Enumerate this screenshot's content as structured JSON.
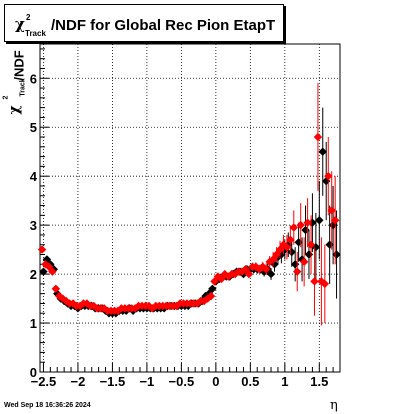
{
  "title": {
    "symbol": "χ",
    "sup": "2",
    "sub": "Track",
    "text": "/NDF for Global Rec Pion EtapT"
  },
  "timestamp": "Wed Sep 18 16:36:26 2024",
  "ylabel_parts": {
    "symbol": "χ",
    "sup": "2",
    "sub": "Track",
    "tail": "/NDF"
  },
  "chart_data": {
    "type": "scatter",
    "title": "χ²_Track/NDF for Global Rec Pion EtapT",
    "xlabel": "η",
    "ylabel": "χ²_Track/NDF",
    "xlim": [
      -2.55,
      1.8
    ],
    "ylim": [
      0,
      6.7
    ],
    "xticks": [
      -2.5,
      -2,
      -1.5,
      -1,
      -0.5,
      0,
      0.5,
      1,
      1.5
    ],
    "xtick_labels": [
      "−2.5",
      "−2",
      "−1.5",
      "−1",
      "−0.5",
      "0",
      "0.5",
      "1",
      "1.5"
    ],
    "yticks": [
      0,
      1,
      2,
      3,
      4,
      5,
      6
    ],
    "ytick_labels": [
      "0",
      "1",
      "2",
      "3",
      "4",
      "5",
      "6"
    ],
    "grid": true,
    "series": [
      {
        "color": "#000000",
        "x": [
          -2.5,
          -2.45,
          -2.4,
          -2.35,
          -2.3,
          -2.25,
          -2.2,
          -2.15,
          -2.1,
          -2.05,
          -2.0,
          -1.95,
          -1.9,
          -1.85,
          -1.8,
          -1.75,
          -1.7,
          -1.65,
          -1.6,
          -1.55,
          -1.5,
          -1.45,
          -1.4,
          -1.35,
          -1.3,
          -1.25,
          -1.2,
          -1.15,
          -1.1,
          -1.05,
          -1.0,
          -0.95,
          -0.9,
          -0.85,
          -0.8,
          -0.75,
          -0.7,
          -0.65,
          -0.6,
          -0.55,
          -0.5,
          -0.45,
          -0.4,
          -0.35,
          -0.3,
          -0.25,
          -0.2,
          -0.15,
          -0.1,
          -0.05,
          0.0,
          0.05,
          0.1,
          0.15,
          0.2,
          0.25,
          0.3,
          0.35,
          0.4,
          0.45,
          0.5,
          0.55,
          0.6,
          0.65,
          0.7,
          0.75,
          0.8,
          0.85,
          0.9,
          0.95,
          1.0,
          1.05,
          1.1,
          1.15,
          1.2,
          1.25,
          1.3,
          1.35,
          1.4,
          1.45,
          1.5,
          1.55,
          1.6,
          1.65,
          1.7,
          1.75
        ],
        "y": [
          2.05,
          2.3,
          2.2,
          2.1,
          1.6,
          1.5,
          1.45,
          1.4,
          1.35,
          1.35,
          1.3,
          1.35,
          1.35,
          1.35,
          1.35,
          1.3,
          1.3,
          1.3,
          1.25,
          1.2,
          1.2,
          1.2,
          1.25,
          1.25,
          1.25,
          1.3,
          1.25,
          1.3,
          1.3,
          1.3,
          1.3,
          1.3,
          1.3,
          1.3,
          1.3,
          1.3,
          1.35,
          1.35,
          1.35,
          1.35,
          1.35,
          1.35,
          1.35,
          1.4,
          1.4,
          1.4,
          1.45,
          1.55,
          1.6,
          1.7,
          1.85,
          1.9,
          1.95,
          1.95,
          1.95,
          2.0,
          2.05,
          2.05,
          2.0,
          2.1,
          2.1,
          2.1,
          2.1,
          2.1,
          2.05,
          2.1,
          2.0,
          2.2,
          2.35,
          2.4,
          2.5,
          2.6,
          2.45,
          2.2,
          2.65,
          2.3,
          2.9,
          2.4,
          3.05,
          2.55,
          3.1,
          4.5,
          3.9,
          2.6,
          3.0,
          2.4
        ],
        "yerr": [
          0.05,
          0.05,
          0.05,
          0.05,
          0.04,
          0.04,
          0.04,
          0.03,
          0.03,
          0.03,
          0.03,
          0.03,
          0.03,
          0.03,
          0.03,
          0.03,
          0.03,
          0.03,
          0.03,
          0.03,
          0.03,
          0.03,
          0.03,
          0.03,
          0.03,
          0.03,
          0.03,
          0.03,
          0.03,
          0.03,
          0.03,
          0.03,
          0.03,
          0.03,
          0.03,
          0.03,
          0.03,
          0.03,
          0.03,
          0.03,
          0.03,
          0.03,
          0.03,
          0.03,
          0.03,
          0.03,
          0.03,
          0.03,
          0.04,
          0.04,
          0.05,
          0.05,
          0.05,
          0.05,
          0.05,
          0.06,
          0.06,
          0.06,
          0.07,
          0.07,
          0.08,
          0.08,
          0.09,
          0.09,
          0.1,
          0.12,
          0.12,
          0.15,
          0.15,
          0.18,
          0.2,
          0.25,
          0.3,
          0.35,
          0.4,
          0.45,
          0.5,
          0.5,
          0.6,
          0.7,
          0.8,
          0.9,
          0.8,
          0.8,
          0.8,
          0.9
        ]
      },
      {
        "color": "#ff0000",
        "x": [
          -2.52,
          -2.47,
          -2.42,
          -2.37,
          -2.32,
          -2.27,
          -2.22,
          -2.17,
          -2.12,
          -2.07,
          -2.02,
          -1.97,
          -1.92,
          -1.87,
          -1.82,
          -1.77,
          -1.72,
          -1.67,
          -1.62,
          -1.57,
          -1.52,
          -1.47,
          -1.42,
          -1.37,
          -1.32,
          -1.27,
          -1.22,
          -1.17,
          -1.12,
          -1.07,
          -1.02,
          -0.97,
          -0.92,
          -0.87,
          -0.82,
          -0.77,
          -0.72,
          -0.67,
          -0.62,
          -0.57,
          -0.52,
          -0.47,
          -0.42,
          -0.37,
          -0.32,
          -0.27,
          -0.22,
          -0.17,
          -0.12,
          -0.07,
          -0.02,
          0.03,
          0.08,
          0.13,
          0.18,
          0.23,
          0.28,
          0.33,
          0.38,
          0.43,
          0.48,
          0.53,
          0.58,
          0.63,
          0.68,
          0.73,
          0.78,
          0.83,
          0.88,
          0.93,
          0.98,
          1.03,
          1.08,
          1.13,
          1.18,
          1.23,
          1.28,
          1.33,
          1.38,
          1.43,
          1.48,
          1.53,
          1.58,
          1.63,
          1.68,
          1.73
        ],
        "y": [
          2.5,
          2.2,
          2.15,
          2.05,
          1.7,
          1.55,
          1.5,
          1.45,
          1.4,
          1.4,
          1.35,
          1.35,
          1.4,
          1.4,
          1.35,
          1.35,
          1.3,
          1.3,
          1.3,
          1.25,
          1.25,
          1.25,
          1.25,
          1.3,
          1.3,
          1.3,
          1.3,
          1.3,
          1.35,
          1.35,
          1.35,
          1.35,
          1.3,
          1.35,
          1.35,
          1.35,
          1.35,
          1.35,
          1.35,
          1.35,
          1.4,
          1.4,
          1.4,
          1.4,
          1.4,
          1.4,
          1.45,
          1.45,
          1.5,
          1.55,
          1.85,
          1.95,
          1.9,
          2.0,
          1.95,
          2.0,
          2.0,
          2.05,
          2.05,
          2.1,
          2.0,
          2.15,
          2.15,
          2.1,
          2.15,
          2.1,
          2.25,
          2.3,
          2.4,
          2.5,
          2.6,
          2.55,
          2.7,
          2.95,
          2.05,
          3.0,
          2.25,
          3.05,
          2.6,
          1.85,
          4.8,
          1.85,
          1.8,
          4.0,
          3.3,
          3.1
        ],
        "yerr": [
          0.05,
          0.05,
          0.05,
          0.05,
          0.04,
          0.04,
          0.04,
          0.03,
          0.03,
          0.03,
          0.03,
          0.03,
          0.03,
          0.03,
          0.03,
          0.03,
          0.03,
          0.03,
          0.03,
          0.03,
          0.03,
          0.03,
          0.03,
          0.03,
          0.03,
          0.03,
          0.03,
          0.03,
          0.03,
          0.03,
          0.03,
          0.03,
          0.03,
          0.03,
          0.03,
          0.03,
          0.03,
          0.03,
          0.03,
          0.03,
          0.03,
          0.03,
          0.03,
          0.03,
          0.03,
          0.03,
          0.03,
          0.03,
          0.04,
          0.04,
          0.05,
          0.05,
          0.05,
          0.05,
          0.05,
          0.06,
          0.06,
          0.06,
          0.07,
          0.07,
          0.08,
          0.08,
          0.09,
          0.09,
          0.1,
          0.12,
          0.12,
          0.15,
          0.15,
          0.18,
          0.2,
          0.25,
          0.3,
          0.35,
          0.4,
          0.45,
          0.5,
          0.5,
          0.6,
          0.7,
          1.1,
          0.9,
          0.8,
          0.8,
          0.8,
          0.9
        ]
      }
    ]
  }
}
